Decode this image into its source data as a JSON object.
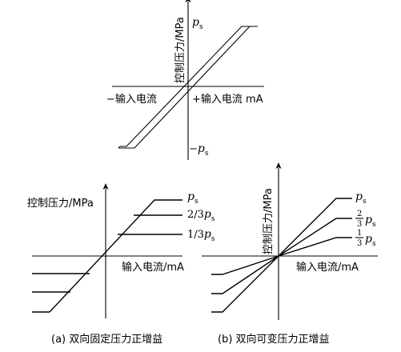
{
  "top": {
    "y_axis_label": "控制压力/MPa",
    "neg_x_label": "−输入电流",
    "pos_x_label": "+输入电流 mA",
    "pos_sat_symbol": "p",
    "pos_sat_sub": "s",
    "neg_sat_prefix": "−",
    "neg_sat_symbol": "p",
    "neg_sat_sub": "s"
  },
  "panel_a": {
    "y_axis_label": "控制压力/MPa",
    "x_axis_label": "输入电流/mA",
    "level_1_symbol": "p",
    "level_1_sub": "s",
    "level_2_coef": "2/3",
    "level_2_symbol": "p",
    "level_2_sub": "s",
    "level_3_coef": "1/3",
    "level_3_symbol": "p",
    "level_3_sub": "s",
    "caption": "(a)  双向固定压力正增益"
  },
  "panel_b": {
    "y_axis_label": "控制压力/MPa",
    "x_axis_label": "输入电流/mA",
    "level_1_symbol": "p",
    "level_1_sub": "s",
    "level_2_num": "2",
    "level_2_den": "3",
    "level_2_symbol": "p",
    "level_2_sub": "s",
    "level_3_num": "1",
    "level_3_den": "3",
    "level_3_symbol": "p",
    "level_3_sub": "s",
    "caption": "(b)  双向可变压力正增益"
  }
}
